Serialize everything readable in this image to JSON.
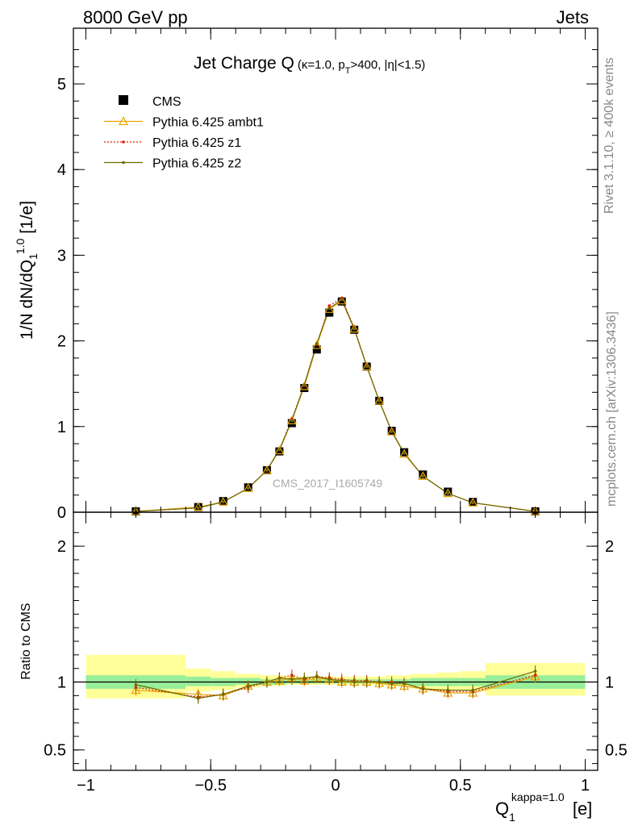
{
  "header": {
    "energy": "8000 GeV pp",
    "category": "Jets"
  },
  "side_text": {
    "rivet": "Rivet 3.1.10, ≥ 400k events",
    "mcplots": "mcplots.cern.ch [arXiv:1306.3436]"
  },
  "watermark": "CMS_2017_I1605749",
  "title": {
    "main": "Jet Charge Q",
    "sub": "(κ=1.0, p",
    "sub_sub": "T",
    "sub_rest": ">400, |η|<1.5)"
  },
  "axes": {
    "y_main_label": "1/N dN/dQ₁^1.0 [1/e]",
    "y_ratio_label": "Ratio to CMS",
    "x_label": "Q₁^kappa=1.0 [e]"
  },
  "legend": [
    {
      "name": "CMS",
      "color": "#000000",
      "marker": "square"
    },
    {
      "name": "Pythia 6.425 ambt1",
      "color": "#e8a500",
      "marker": "triangle-open"
    },
    {
      "name": "Pythia 6.425 z1",
      "color": "#e02000",
      "marker": "dot-dotted"
    },
    {
      "name": "Pythia 6.425 z2",
      "color": "#6b6b00",
      "marker": "dot"
    }
  ],
  "chart_data": {
    "type": "line",
    "x": [
      -0.8,
      -0.55,
      -0.45,
      -0.35,
      -0.275,
      -0.225,
      -0.175,
      -0.125,
      -0.075,
      -0.025,
      0.025,
      0.075,
      0.125,
      0.175,
      0.225,
      0.275,
      0.35,
      0.45,
      0.55,
      0.8
    ],
    "xlim": [
      -1.05,
      1.05
    ],
    "main": {
      "ylim": [
        0,
        5.65
      ],
      "yticks": [
        0,
        1,
        2,
        3,
        4,
        5
      ],
      "series": [
        {
          "name": "CMS",
          "values": [
            0.01,
            0.06,
            0.13,
            0.29,
            0.49,
            0.71,
            1.04,
            1.45,
            1.9,
            2.33,
            2.46,
            2.13,
            1.7,
            1.3,
            0.95,
            0.7,
            0.44,
            0.24,
            0.12,
            0.01
          ]
        },
        {
          "name": "Pythia 6.425 ambt1",
          "values": [
            0.01,
            0.06,
            0.12,
            0.28,
            0.49,
            0.72,
            1.07,
            1.47,
            1.95,
            2.37,
            2.47,
            2.14,
            1.7,
            1.3,
            0.94,
            0.68,
            0.42,
            0.22,
            0.11,
            0.01
          ]
        },
        {
          "name": "Pythia 6.425 z1",
          "values": [
            0.01,
            0.05,
            0.12,
            0.28,
            0.49,
            0.73,
            1.09,
            1.48,
            1.96,
            2.41,
            2.5,
            2.15,
            1.71,
            1.3,
            0.95,
            0.69,
            0.42,
            0.22,
            0.11,
            0.01
          ]
        },
        {
          "name": "Pythia 6.425 z2",
          "values": [
            0.01,
            0.05,
            0.12,
            0.28,
            0.49,
            0.73,
            1.07,
            1.49,
            1.97,
            2.38,
            2.48,
            2.14,
            1.7,
            1.3,
            0.94,
            0.69,
            0.42,
            0.22,
            0.11,
            0.01
          ]
        }
      ]
    },
    "ratio": {
      "ylim": [
        0.35,
        2.25
      ],
      "yticks": [
        0.5,
        1,
        2
      ],
      "ytick_labels": [
        "0.5",
        "1",
        "2"
      ],
      "reference": 1,
      "bands": [
        {
          "x0": -1.0,
          "x1": -0.6,
          "green": [
            0.95,
            1.05
          ],
          "yellow": [
            0.88,
            1.2
          ]
        },
        {
          "x0": -0.6,
          "x1": -0.5,
          "green": [
            0.97,
            1.04
          ],
          "yellow": [
            0.93,
            1.1
          ]
        },
        {
          "x0": -0.5,
          "x1": -0.4,
          "green": [
            0.97,
            1.03
          ],
          "yellow": [
            0.94,
            1.08
          ]
        },
        {
          "x0": -0.4,
          "x1": -0.3,
          "green": [
            0.98,
            1.03
          ],
          "yellow": [
            0.96,
            1.06
          ]
        },
        {
          "x0": -0.3,
          "x1": -0.2,
          "green": [
            0.98,
            1.02
          ],
          "yellow": [
            0.97,
            1.05
          ]
        },
        {
          "x0": -0.2,
          "x1": 0.2,
          "green": [
            0.99,
            1.02
          ],
          "yellow": [
            0.98,
            1.04
          ]
        },
        {
          "x0": 0.2,
          "x1": 0.3,
          "green": [
            0.98,
            1.02
          ],
          "yellow": [
            0.97,
            1.05
          ]
        },
        {
          "x0": 0.3,
          "x1": 0.4,
          "green": [
            0.97,
            1.03
          ],
          "yellow": [
            0.95,
            1.06
          ]
        },
        {
          "x0": 0.4,
          "x1": 0.5,
          "green": [
            0.97,
            1.03
          ],
          "yellow": [
            0.94,
            1.07
          ]
        },
        {
          "x0": 0.5,
          "x1": 0.6,
          "green": [
            0.97,
            1.03
          ],
          "yellow": [
            0.94,
            1.08
          ]
        },
        {
          "x0": 0.6,
          "x1": 1.0,
          "green": [
            0.95,
            1.05
          ],
          "yellow": [
            0.9,
            1.14
          ]
        }
      ],
      "series": [
        {
          "name": "Pythia 6.425 ambt1",
          "values": [
            0.94,
            0.91,
            0.9,
            0.97,
            1.0,
            1.01,
            1.03,
            1.01,
            1.03,
            1.02,
            1.0,
            1.0,
            1.0,
            0.99,
            0.98,
            0.97,
            0.95,
            0.92,
            0.92,
            1.04
          ]
        },
        {
          "name": "Pythia 6.425 z1",
          "values": [
            0.96,
            0.89,
            0.91,
            0.96,
            1.0,
            1.03,
            1.05,
            1.02,
            1.04,
            1.03,
            1.02,
            1.01,
            1.01,
            1.0,
            1.0,
            0.99,
            0.95,
            0.93,
            0.93,
            1.05
          ]
        },
        {
          "name": "Pythia 6.425 z2",
          "values": [
            0.98,
            0.88,
            0.91,
            0.97,
            1.0,
            1.03,
            1.02,
            1.03,
            1.04,
            1.02,
            1.01,
            1.0,
            1.0,
            1.0,
            0.99,
            0.99,
            0.95,
            0.94,
            0.94,
            1.08
          ]
        }
      ]
    },
    "xticks": [
      -1,
      -0.5,
      0,
      0.5,
      1
    ],
    "xtick_labels": [
      "−1",
      "−0.5",
      "0",
      "0.5",
      "1"
    ]
  }
}
